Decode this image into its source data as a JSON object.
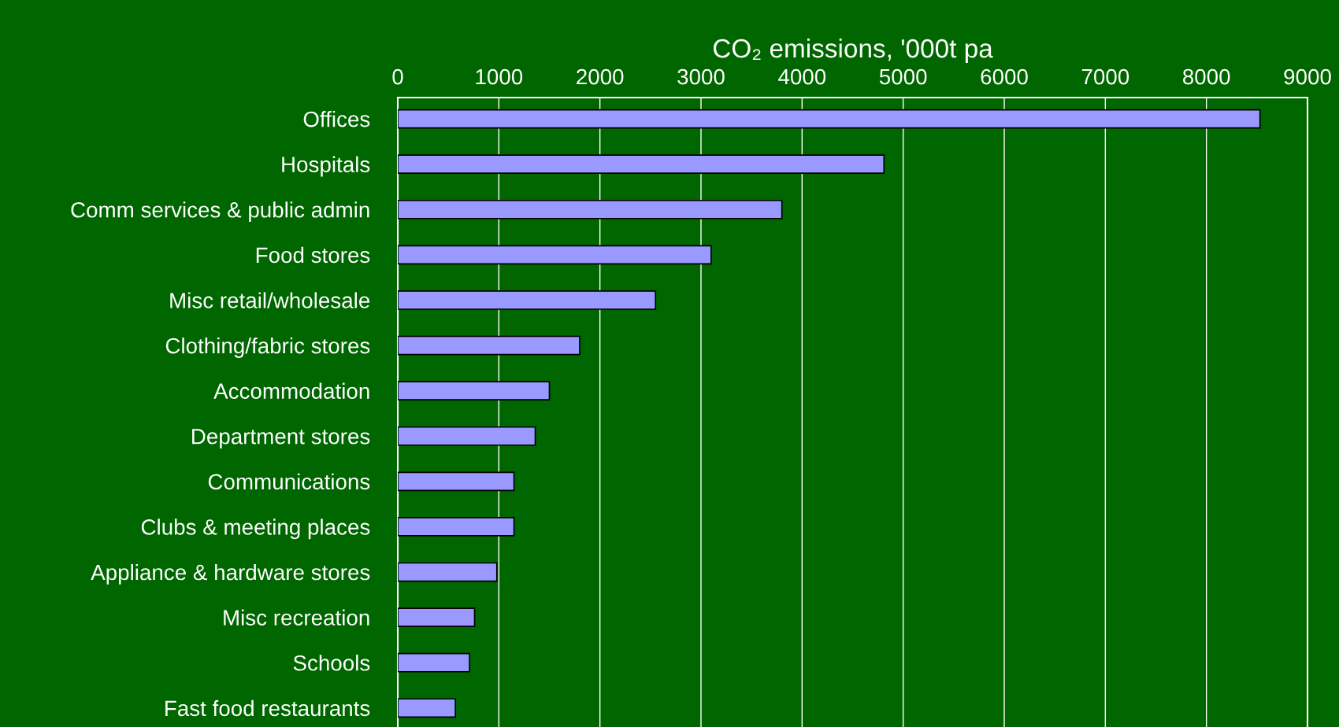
{
  "chart_data": {
    "type": "bar",
    "orientation": "horizontal",
    "xlabel": "CO₂ emissions, '000t pa",
    "categories": [
      "Offices",
      "Hospitals",
      "Comm services & public admin",
      "Food stores",
      "Misc retail/wholesale",
      "Clothing/fabric stores",
      "Accommodation",
      "Department stores",
      "Communications",
      "Clubs & meeting places",
      "Appliance & hardware stores",
      "Misc recreation",
      "Schools",
      "Fast food restaurants"
    ],
    "values": [
      8530,
      4810,
      3800,
      3100,
      2550,
      1800,
      1500,
      1360,
      1150,
      1150,
      980,
      760,
      710,
      570
    ],
    "color": "#9999ff",
    "xlim": [
      0,
      9000
    ],
    "xticks": [
      0,
      1000,
      2000,
      3000,
      4000,
      5000,
      6000,
      7000,
      8000,
      9000
    ],
    "grid": "x",
    "legend": false
  }
}
